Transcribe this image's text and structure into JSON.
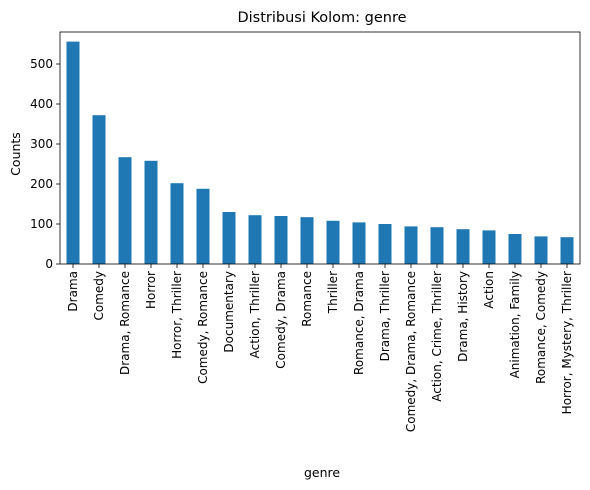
{
  "chart_data": {
    "type": "bar",
    "title": "Distribusi Kolom: genre",
    "xlabel": "genre",
    "ylabel": "Counts",
    "ylim": [
      0,
      580
    ],
    "yticks": [
      0,
      100,
      200,
      300,
      400,
      500
    ],
    "grid": false,
    "legend": "none",
    "bar_color": "#1f77b4",
    "categories": [
      "Drama",
      "Comedy",
      "Drama, Romance",
      "Horror",
      "Horror, Thriller",
      "Comedy, Romance",
      "Documentary",
      "Action, Thriller",
      "Comedy, Drama",
      "Romance",
      "Thriller",
      "Romance, Drama",
      "Drama, Thriller",
      "Comedy, Drama, Romance",
      "Action, Crime, Thriller",
      "Drama, History",
      "Action",
      "Animation, Family",
      "Romance, Comedy",
      "Horror, Mystery, Thriller"
    ],
    "values": [
      556,
      372,
      267,
      258,
      202,
      188,
      130,
      122,
      120,
      117,
      108,
      104,
      100,
      94,
      92,
      87,
      84,
      75,
      69,
      67
    ]
  }
}
